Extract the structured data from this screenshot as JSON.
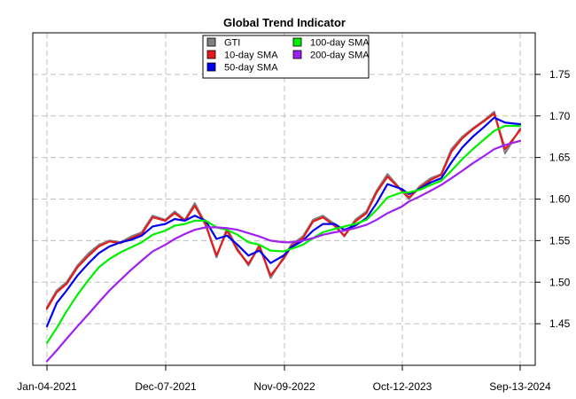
{
  "chart_data": {
    "type": "line",
    "title": "Global Trend Indicator",
    "xlabel": "",
    "ylabel": "",
    "x_tick_labels": [
      "Jan-04-2021",
      "Dec-07-2021",
      "Nov-09-2022",
      "Oct-12-2023",
      "Sep-13-2024"
    ],
    "y_ticks": [
      1.45,
      1.5,
      1.55,
      1.6,
      1.65,
      1.7,
      1.75
    ],
    "y_tick_labels": [
      "1.45",
      "1.50",
      "1.55",
      "1.60",
      "1.65",
      "1.70",
      "1.75"
    ],
    "ylim": [
      1.4,
      1.8
    ],
    "xlim": [
      "Jan-04-2021",
      "Sep-13-2024"
    ],
    "grid": true,
    "legend_position": "top-center",
    "x": [
      "2021-01-04",
      "2021-02-01",
      "2021-03-01",
      "2021-04-01",
      "2021-05-03",
      "2021-06-01",
      "2021-07-01",
      "2021-08-02",
      "2021-09-01",
      "2021-10-01",
      "2021-11-01",
      "2021-12-07",
      "2022-01-03",
      "2022-02-01",
      "2022-03-01",
      "2022-04-01",
      "2022-05-02",
      "2022-06-01",
      "2022-07-01",
      "2022-08-01",
      "2022-09-01",
      "2022-10-03",
      "2022-11-09",
      "2022-12-01",
      "2023-01-03",
      "2023-02-01",
      "2023-03-01",
      "2023-04-03",
      "2023-05-01",
      "2023-06-01",
      "2023-07-03",
      "2023-08-01",
      "2023-09-01",
      "2023-10-12",
      "2023-11-01",
      "2023-12-01",
      "2024-01-02",
      "2024-02-01",
      "2024-03-01",
      "2024-04-01",
      "2024-05-01",
      "2024-06-03",
      "2024-07-01",
      "2024-08-01",
      "2024-09-13"
    ],
    "series": [
      {
        "name": "GTI",
        "color": "#808080",
        "width": 2.2,
        "values": [
          1.47,
          1.49,
          1.5,
          1.52,
          1.535,
          1.545,
          1.55,
          1.548,
          1.555,
          1.56,
          1.58,
          1.575,
          1.585,
          1.575,
          1.595,
          1.57,
          1.53,
          1.565,
          1.54,
          1.52,
          1.545,
          1.505,
          1.53,
          1.545,
          1.555,
          1.575,
          1.58,
          1.57,
          1.555,
          1.575,
          1.585,
          1.61,
          1.63,
          1.61,
          1.6,
          1.615,
          1.625,
          1.63,
          1.66,
          1.675,
          1.685,
          1.695,
          1.705,
          1.655,
          1.685
        ]
      },
      {
        "name": "10-day SMA",
        "color": "#e41a1c",
        "width": 2.2,
        "values": [
          1.468,
          1.488,
          1.498,
          1.518,
          1.532,
          1.543,
          1.549,
          1.547,
          1.553,
          1.558,
          1.578,
          1.574,
          1.583,
          1.574,
          1.592,
          1.569,
          1.532,
          1.562,
          1.538,
          1.522,
          1.543,
          1.508,
          1.528,
          1.543,
          1.553,
          1.573,
          1.578,
          1.568,
          1.556,
          1.573,
          1.583,
          1.608,
          1.627,
          1.61,
          1.602,
          1.613,
          1.623,
          1.629,
          1.657,
          1.673,
          1.684,
          1.694,
          1.703,
          1.66,
          1.683
        ]
      },
      {
        "name": "50-day SMA",
        "color": "#0000ee",
        "width": 2.2,
        "values": [
          1.447,
          1.475,
          1.49,
          1.508,
          1.523,
          1.535,
          1.543,
          1.548,
          1.551,
          1.556,
          1.567,
          1.57,
          1.576,
          1.574,
          1.58,
          1.574,
          1.552,
          1.556,
          1.545,
          1.532,
          1.538,
          1.523,
          1.532,
          1.542,
          1.55,
          1.562,
          1.57,
          1.57,
          1.563,
          1.568,
          1.577,
          1.595,
          1.618,
          1.612,
          1.606,
          1.612,
          1.62,
          1.625,
          1.644,
          1.662,
          1.675,
          1.687,
          1.698,
          1.692,
          1.69
        ]
      },
      {
        "name": "100-day SMA",
        "color": "#00ee00",
        "width": 2.2,
        "values": [
          1.427,
          1.445,
          1.465,
          1.485,
          1.503,
          1.518,
          1.528,
          1.536,
          1.542,
          1.548,
          1.557,
          1.562,
          1.568,
          1.57,
          1.574,
          1.574,
          1.566,
          1.563,
          1.557,
          1.548,
          1.545,
          1.538,
          1.537,
          1.54,
          1.545,
          1.553,
          1.56,
          1.564,
          1.567,
          1.57,
          1.575,
          1.587,
          1.602,
          1.608,
          1.608,
          1.611,
          1.617,
          1.622,
          1.634,
          1.648,
          1.66,
          1.672,
          1.682,
          1.688,
          1.688
        ]
      },
      {
        "name": "200-day SMA",
        "color": "#a020f0",
        "width": 2.2,
        "values": [
          1.405,
          1.418,
          1.432,
          1.447,
          1.462,
          1.476,
          1.49,
          1.503,
          1.515,
          1.526,
          1.537,
          1.545,
          1.552,
          1.558,
          1.563,
          1.566,
          1.566,
          1.565,
          1.563,
          1.559,
          1.555,
          1.55,
          1.548,
          1.548,
          1.55,
          1.553,
          1.557,
          1.56,
          1.562,
          1.565,
          1.569,
          1.575,
          1.583,
          1.591,
          1.597,
          1.603,
          1.61,
          1.617,
          1.625,
          1.634,
          1.643,
          1.652,
          1.66,
          1.665,
          1.67
        ]
      }
    ],
    "legend": [
      {
        "label": "GTI",
        "color": "#808080"
      },
      {
        "label": "10-day SMA",
        "color": "#e41a1c"
      },
      {
        "label": "50-day SMA",
        "color": "#0000ee"
      },
      {
        "label": "100-day SMA",
        "color": "#00ee00"
      },
      {
        "label": "200-day SMA",
        "color": "#a020f0"
      }
    ]
  }
}
